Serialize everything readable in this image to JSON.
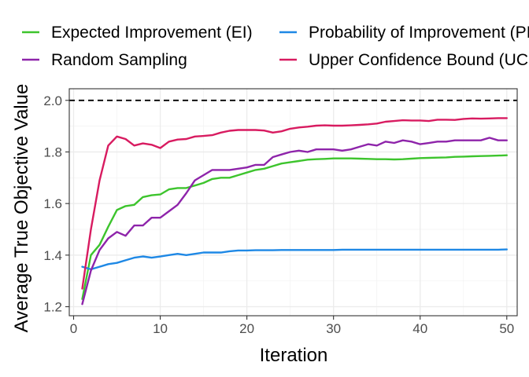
{
  "chart_data": {
    "type": "line",
    "xlabel": "Iteration",
    "ylabel": "Average True Objective Value",
    "xlim": [
      -0.5,
      51.2
    ],
    "ylim": [
      1.165,
      2.045
    ],
    "x_ticks": [
      0,
      10,
      20,
      30,
      40,
      50
    ],
    "y_ticks": [
      1.2,
      1.4,
      1.6,
      1.8,
      2.0
    ],
    "y_tick_labels": [
      "1.2",
      "1.4",
      "1.6",
      "1.8",
      "2.0"
    ],
    "grid": true,
    "legend_position": "top",
    "reference_line": {
      "y": 2.0,
      "style": "dashed",
      "color": "#000000"
    },
    "series": [
      {
        "name": "Expected Improvement (EI)",
        "color": "#3dc42d",
        "x": [
          1,
          2,
          3,
          4,
          5,
          6,
          7,
          8,
          9,
          10,
          11,
          12,
          13,
          14,
          15,
          16,
          17,
          18,
          19,
          20,
          21,
          22,
          23,
          24,
          25,
          26,
          27,
          28,
          29,
          30,
          31,
          32,
          33,
          34,
          35,
          36,
          37,
          38,
          39,
          40,
          41,
          42,
          43,
          44,
          45,
          46,
          47,
          48,
          49,
          50
        ],
        "values": [
          1.23,
          1.4,
          1.44,
          1.51,
          1.575,
          1.59,
          1.595,
          1.625,
          1.632,
          1.635,
          1.655,
          1.66,
          1.66,
          1.67,
          1.68,
          1.695,
          1.7,
          1.7,
          1.71,
          1.72,
          1.73,
          1.735,
          1.745,
          1.755,
          1.76,
          1.765,
          1.77,
          1.772,
          1.773,
          1.775,
          1.775,
          1.775,
          1.774,
          1.773,
          1.772,
          1.772,
          1.771,
          1.772,
          1.774,
          1.776,
          1.777,
          1.778,
          1.779,
          1.781,
          1.782,
          1.783,
          1.784,
          1.785,
          1.786,
          1.787
        ]
      },
      {
        "name": "Probability of Improvement (PI)",
        "color": "#1e88e5",
        "x": [
          1,
          2,
          3,
          4,
          5,
          6,
          7,
          8,
          9,
          10,
          11,
          12,
          13,
          14,
          15,
          16,
          17,
          18,
          19,
          20,
          21,
          22,
          23,
          24,
          25,
          26,
          27,
          28,
          29,
          30,
          31,
          32,
          33,
          34,
          35,
          36,
          37,
          38,
          39,
          40,
          41,
          42,
          43,
          44,
          45,
          46,
          47,
          48,
          49,
          50
        ],
        "values": [
          1.355,
          1.345,
          1.355,
          1.365,
          1.37,
          1.38,
          1.39,
          1.395,
          1.39,
          1.395,
          1.4,
          1.405,
          1.4,
          1.405,
          1.41,
          1.41,
          1.41,
          1.415,
          1.418,
          1.418,
          1.419,
          1.419,
          1.419,
          1.42,
          1.42,
          1.42,
          1.42,
          1.42,
          1.42,
          1.42,
          1.421,
          1.421,
          1.421,
          1.421,
          1.421,
          1.421,
          1.421,
          1.421,
          1.421,
          1.421,
          1.421,
          1.421,
          1.421,
          1.421,
          1.421,
          1.421,
          1.421,
          1.421,
          1.421,
          1.422
        ]
      },
      {
        "name": "Random Sampling",
        "color": "#8e24aa",
        "x": [
          1,
          2,
          3,
          4,
          5,
          6,
          7,
          8,
          9,
          10,
          11,
          12,
          13,
          14,
          15,
          16,
          17,
          18,
          19,
          20,
          21,
          22,
          23,
          24,
          25,
          26,
          27,
          28,
          29,
          30,
          31,
          32,
          33,
          34,
          35,
          36,
          37,
          38,
          39,
          40,
          41,
          42,
          43,
          44,
          45,
          46,
          47,
          48,
          49,
          50
        ],
        "values": [
          1.21,
          1.34,
          1.42,
          1.465,
          1.49,
          1.475,
          1.515,
          1.515,
          1.545,
          1.545,
          1.57,
          1.595,
          1.64,
          1.69,
          1.71,
          1.73,
          1.73,
          1.73,
          1.735,
          1.74,
          1.75,
          1.75,
          1.78,
          1.79,
          1.8,
          1.805,
          1.8,
          1.81,
          1.81,
          1.81,
          1.805,
          1.81,
          1.82,
          1.83,
          1.825,
          1.84,
          1.835,
          1.845,
          1.84,
          1.83,
          1.835,
          1.84,
          1.84,
          1.845,
          1.845,
          1.845,
          1.845,
          1.855,
          1.845,
          1.845
        ]
      },
      {
        "name": "Upper Confidence Bound (UCB)",
        "color": "#d81b60",
        "x": [
          1,
          2,
          3,
          4,
          5,
          6,
          7,
          8,
          9,
          10,
          11,
          12,
          13,
          14,
          15,
          16,
          17,
          18,
          19,
          20,
          21,
          22,
          23,
          24,
          25,
          26,
          27,
          28,
          29,
          30,
          31,
          32,
          33,
          34,
          35,
          36,
          37,
          38,
          39,
          40,
          41,
          42,
          43,
          44,
          45,
          46,
          47,
          48,
          49,
          50
        ],
        "values": [
          1.27,
          1.5,
          1.69,
          1.825,
          1.86,
          1.85,
          1.825,
          1.833,
          1.828,
          1.815,
          1.84,
          1.848,
          1.85,
          1.86,
          1.862,
          1.865,
          1.875,
          1.882,
          1.885,
          1.885,
          1.885,
          1.883,
          1.875,
          1.88,
          1.89,
          1.895,
          1.898,
          1.902,
          1.903,
          1.902,
          1.902,
          1.903,
          1.905,
          1.907,
          1.91,
          1.917,
          1.92,
          1.923,
          1.922,
          1.922,
          1.92,
          1.925,
          1.925,
          1.924,
          1.928,
          1.93,
          1.929,
          1.93,
          1.931,
          1.931
        ]
      }
    ]
  }
}
